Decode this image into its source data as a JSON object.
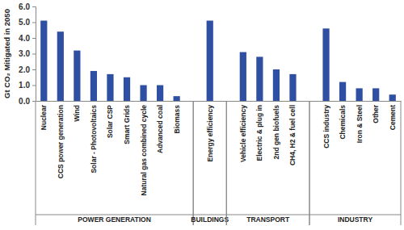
{
  "chart_data": {
    "type": "bar",
    "y_label": "Gt CO₂ Mitigated in 2050",
    "categories": [
      "Nuclear",
      "CCS power generation",
      "Wind",
      "Solar - Photovoltaics",
      "Solar CSP",
      "Smart Grids",
      "Natural gas combined cycle",
      "Advanced coal",
      "Biomass",
      null,
      "Energy efficiency",
      null,
      "Vehicle efficiency",
      "Electric & plug in",
      "2nd gen biofuels",
      "CH4, H2 & fuel cell",
      null,
      "CCS industry",
      "Chemicals",
      "Iron & Steel",
      "Other",
      "Cement"
    ],
    "values": [
      5.1,
      4.4,
      3.2,
      1.9,
      1.7,
      1.5,
      1.0,
      1.0,
      0.3,
      null,
      5.1,
      null,
      3.1,
      2.8,
      2.0,
      1.7,
      null,
      4.6,
      1.2,
      0.8,
      0.8,
      0.4
    ],
    "category_groups": [
      "POWER GENERATION",
      "POWER GENERATION",
      "POWER GENERATION",
      "POWER GENERATION",
      "POWER GENERATION",
      "POWER GENERATION",
      "POWER GENERATION",
      "POWER GENERATION",
      "POWER GENERATION",
      null,
      "BUILDINGS",
      null,
      "TRANSPORT",
      "TRANSPORT",
      "TRANSPORT",
      "TRANSPORT",
      null,
      "INDUSTRY",
      "INDUSTRY",
      "INDUSTRY",
      "INDUSTRY",
      "INDUSTRY"
    ],
    "color": "#2f4fa2",
    "ylim": [
      0,
      6
    ],
    "yticks": [
      {
        "value": 0,
        "label": "0.0"
      },
      {
        "value": 1,
        "label": "1.0"
      },
      {
        "value": 2,
        "label": "2.0"
      },
      {
        "value": 3,
        "label": "3.0"
      },
      {
        "value": 4,
        "label": "4.0"
      },
      {
        "value": 5,
        "label": "5.0"
      },
      {
        "value": 6,
        "label": "6.0"
      }
    ],
    "grid": false
  }
}
